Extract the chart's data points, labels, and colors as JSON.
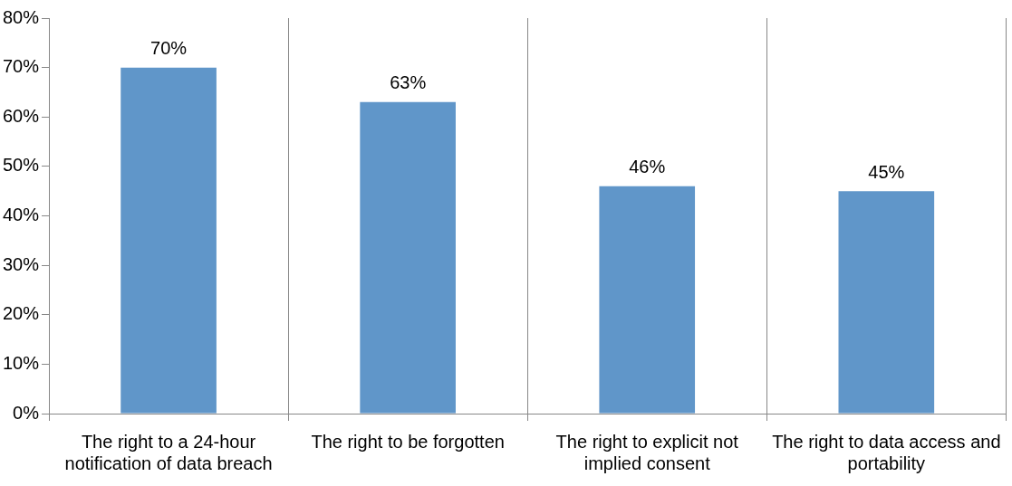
{
  "chart_data": {
    "type": "bar",
    "categories": [
      "The right to a 24-hour notification of data breach",
      "The right to be forgotten",
      "The right to explicit not implied consent",
      "The right to data access and portability"
    ],
    "values": [
      70,
      63,
      46,
      45
    ],
    "color": "#6096c9",
    "value_labels": [
      "70%",
      "63%",
      "46%",
      "45%"
    ],
    "ylim": [
      0,
      80
    ],
    "yticks": [
      {
        "value": 0,
        "label": "0%"
      },
      {
        "value": 10,
        "label": "10%"
      },
      {
        "value": 20,
        "label": "20%"
      },
      {
        "value": 30,
        "label": "30%"
      },
      {
        "value": 40,
        "label": "40%"
      },
      {
        "value": 50,
        "label": "50%"
      },
      {
        "value": 60,
        "label": "60%"
      },
      {
        "value": 70,
        "label": "70%"
      },
      {
        "value": 80,
        "label": "80%"
      }
    ],
    "grid": "x",
    "legend": false
  }
}
